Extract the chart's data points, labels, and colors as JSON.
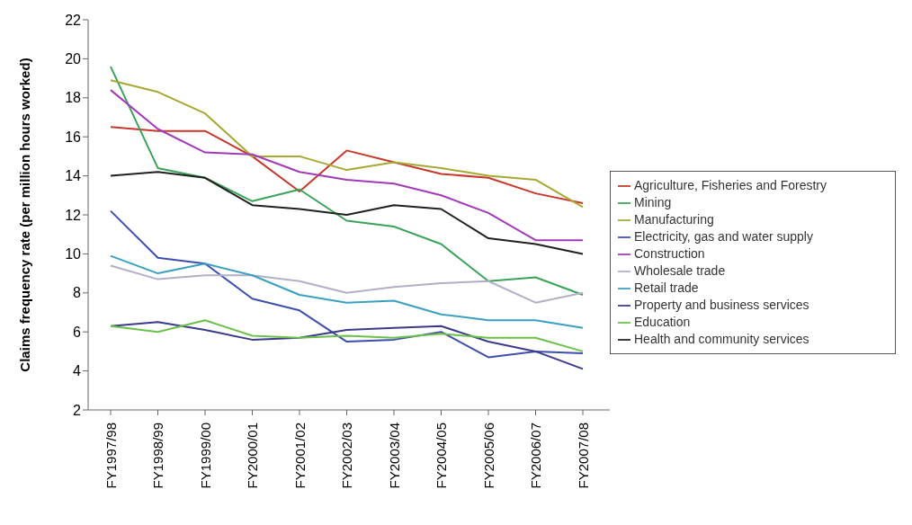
{
  "chart_data": {
    "type": "line",
    "ylabel": "Claims frequency rate (per million hours worked)",
    "categories": [
      "FY1997/98",
      "FY1998/99",
      "FY1999/00",
      "FY2000/01",
      "FY2001/02",
      "FY2002/03",
      "FY2003/04",
      "FY2004/05",
      "FY2005/06",
      "FY2006/07",
      "FY2007/08"
    ],
    "series": [
      {
        "name": "Agriculture, Fisheries and Forestry",
        "color": "#c8382a",
        "values": [
          16.5,
          16.3,
          16.3,
          15.0,
          13.2,
          15.3,
          14.7,
          14.1,
          13.9,
          13.1,
          12.6
        ]
      },
      {
        "name": "Mining",
        "color": "#3aa35a",
        "values": [
          19.6,
          14.4,
          13.9,
          12.7,
          13.3,
          11.7,
          11.4,
          10.5,
          8.6,
          8.8,
          7.9
        ]
      },
      {
        "name": "Manufacturing",
        "color": "#a6a832",
        "values": [
          18.9,
          18.3,
          17.2,
          15.0,
          15.0,
          14.3,
          14.7,
          14.4,
          14.0,
          13.8,
          12.4
        ]
      },
      {
        "name": "Electricity, gas and water supply",
        "color": "#3c4fb0",
        "values": [
          12.2,
          9.8,
          9.5,
          7.7,
          7.1,
          5.5,
          5.6,
          6.0,
          4.7,
          5.0,
          4.9
        ]
      },
      {
        "name": "Construction",
        "color": "#a23ab8",
        "values": [
          18.4,
          16.4,
          15.2,
          15.1,
          14.2,
          13.8,
          13.6,
          13.0,
          12.1,
          10.7,
          10.7
        ]
      },
      {
        "name": "Wholesale trade",
        "color": "#b0b0c8",
        "values": [
          9.4,
          8.7,
          8.9,
          8.9,
          8.6,
          8.0,
          8.3,
          8.5,
          8.6,
          7.5,
          8.0
        ]
      },
      {
        "name": "Retail trade",
        "color": "#3aa0c0",
        "values": [
          9.9,
          9.0,
          9.5,
          8.9,
          7.9,
          7.5,
          7.6,
          6.9,
          6.6,
          6.6,
          6.2
        ]
      },
      {
        "name": "Property and business services",
        "color": "#3a3a8c",
        "values": [
          6.3,
          6.5,
          6.1,
          5.6,
          5.7,
          6.1,
          6.2,
          6.3,
          5.5,
          5.0,
          4.1
        ]
      },
      {
        "name": "Education",
        "color": "#6cc04a",
        "values": [
          6.3,
          6.0,
          6.6,
          5.8,
          5.7,
          5.8,
          5.7,
          5.9,
          5.7,
          5.7,
          5.0
        ]
      },
      {
        "name": "Health and community services",
        "color": "#202020",
        "values": [
          14.0,
          14.2,
          13.9,
          12.5,
          12.3,
          12.0,
          12.5,
          12.3,
          10.8,
          10.5,
          10.0
        ]
      }
    ],
    "ylim": [
      2,
      22
    ],
    "yticks": [
      2,
      4,
      6,
      8,
      10,
      12,
      14,
      16,
      18,
      20,
      22
    ],
    "grid": false,
    "legend": "right",
    "marker": "none",
    "line_style": "solid"
  }
}
